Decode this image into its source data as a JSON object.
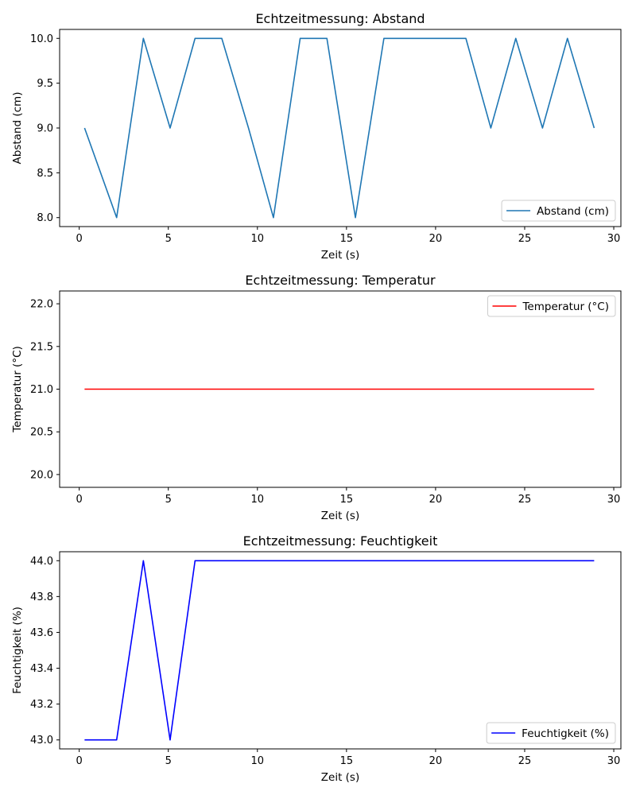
{
  "chart_data": [
    {
      "type": "line",
      "title": "Echtzeitmessung: Abstand",
      "xlabel": "Zeit (s)",
      "ylabel": "Abstand (cm)",
      "xlim": [
        -1.1,
        30.4
      ],
      "ylim": [
        7.9,
        10.1
      ],
      "xticks": [
        0,
        5,
        10,
        15,
        20,
        25,
        30
      ],
      "yticks": [
        8.0,
        8.5,
        9.0,
        9.5,
        10.0
      ],
      "ytick_labels": [
        "8.0",
        "8.5",
        "9.0",
        "9.5",
        "10.0"
      ],
      "legend_position": "lower right",
      "series": [
        {
          "name": "Abstand (cm)",
          "color": "#1f77b4",
          "x": [
            0.3,
            2.1,
            3.6,
            5.1,
            6.5,
            8.0,
            9.5,
            10.9,
            12.4,
            13.9,
            15.5,
            17.1,
            21.7,
            23.1,
            24.5,
            26.0,
            27.4,
            28.9
          ],
          "y": [
            9.0,
            8.0,
            10.0,
            9.0,
            10.0,
            10.0,
            9.0,
            8.0,
            10.0,
            10.0,
            8.0,
            10.0,
            10.0,
            9.0,
            10.0,
            9.0,
            10.0,
            9.0
          ]
        }
      ]
    },
    {
      "type": "line",
      "title": "Echtzeitmessung: Temperatur",
      "xlabel": "Zeit (s)",
      "ylabel": "Temperatur (°C)",
      "xlim": [
        -1.1,
        30.4
      ],
      "ylim": [
        19.85,
        22.15
      ],
      "xticks": [
        0,
        5,
        10,
        15,
        20,
        25,
        30
      ],
      "yticks": [
        20.0,
        20.5,
        21.0,
        21.5,
        22.0
      ],
      "ytick_labels": [
        "20.0",
        "20.5",
        "21.0",
        "21.5",
        "22.0"
      ],
      "legend_position": "upper right",
      "series": [
        {
          "name": "Temperatur (°C)",
          "color": "#ff0000",
          "x": [
            0.3,
            28.9
          ],
          "y": [
            21.0,
            21.0
          ]
        }
      ]
    },
    {
      "type": "line",
      "title": "Echtzeitmessung: Feuchtigkeit",
      "xlabel": "Zeit (s)",
      "ylabel": "Feuchtigkeit (%)",
      "xlim": [
        -1.1,
        30.4
      ],
      "ylim": [
        42.95,
        44.05
      ],
      "xticks": [
        0,
        5,
        10,
        15,
        20,
        25,
        30
      ],
      "yticks": [
        43.0,
        43.2,
        43.4,
        43.6,
        43.8,
        44.0
      ],
      "ytick_labels": [
        "43.0",
        "43.2",
        "43.4",
        "43.6",
        "43.8",
        "44.0"
      ],
      "legend_position": "lower right",
      "series": [
        {
          "name": "Feuchtigkeit (%)",
          "color": "#0000ff",
          "x": [
            0.3,
            2.1,
            3.6,
            5.1,
            6.5,
            28.9
          ],
          "y": [
            43.0,
            43.0,
            44.0,
            43.0,
            44.0,
            44.0
          ]
        }
      ]
    }
  ]
}
